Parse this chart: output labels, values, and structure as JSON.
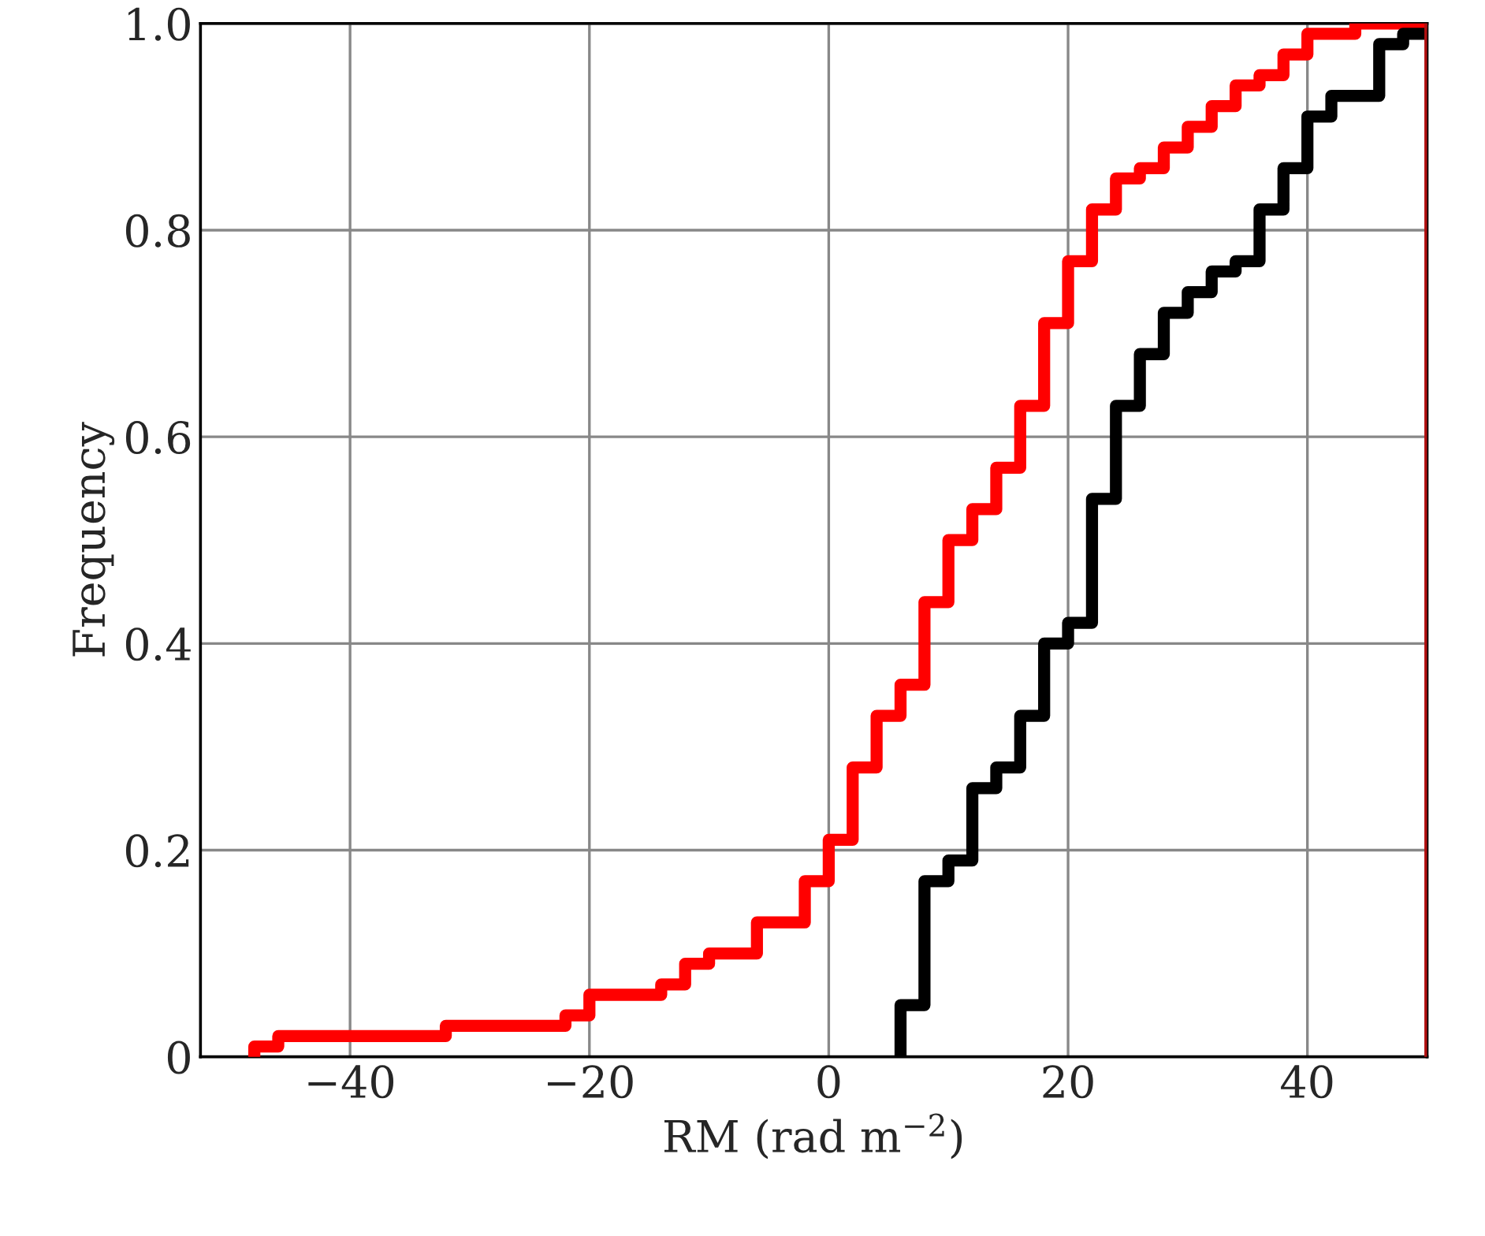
{
  "chart_data": {
    "type": "step",
    "xlabel": "RM (rad m$^{−2}$)",
    "ylabel": "Frequency",
    "xlim": [
      -52.5,
      50
    ],
    "ylim": [
      0,
      1
    ],
    "xticks": [
      {
        "value": -40,
        "label": "−40"
      },
      {
        "value": -20,
        "label": "−20"
      },
      0,
      20,
      40
    ],
    "yticks": [
      0,
      0.2,
      0.4,
      0.6,
      0.8,
      {
        "value": 1,
        "label": "1.0"
      }
    ],
    "grid": true,
    "ref_lines": [
      {
        "axis": "x",
        "value": 50,
        "color": "#b01010"
      }
    ],
    "series": [
      {
        "color": "#ff0000",
        "x": [
          -48,
          -46,
          -44,
          -42,
          -40,
          -38,
          -36,
          -34,
          -32,
          -30,
          -28,
          -26,
          -24,
          -22,
          -20,
          -18,
          -16,
          -14,
          -12,
          -10,
          -8,
          -6,
          -4,
          -2,
          0,
          2,
          4,
          6,
          8,
          10,
          12,
          14,
          16,
          18,
          20,
          22,
          24,
          26,
          28,
          30,
          32,
          34,
          36,
          38,
          40,
          42,
          44,
          46,
          48,
          50
        ],
        "values": [
          0,
          0.01,
          0.02,
          0.02,
          0.02,
          0.02,
          0.02,
          0.02,
          0.02,
          0.03,
          0.03,
          0.03,
          0.03,
          0.03,
          0.04,
          0.06,
          0.06,
          0.06,
          0.07,
          0.09,
          0.1,
          0.1,
          0.13,
          0.13,
          0.17,
          0.21,
          0.28,
          0.33,
          0.36,
          0.44,
          0.5,
          0.53,
          0.57,
          0.63,
          0.71,
          0.77,
          0.82,
          0.85,
          0.86,
          0.88,
          0.9,
          0.92,
          0.94,
          0.95,
          0.97,
          0.99,
          0.99,
          1,
          1,
          1
        ]
      },
      {
        "color": "#000000",
        "x": [
          6,
          8,
          10,
          12,
          14,
          16,
          18,
          20,
          22,
          24,
          26,
          28,
          30,
          32,
          34,
          36,
          38,
          40,
          42,
          44,
          46,
          48,
          50
        ],
        "values": [
          0,
          0.05,
          0.17,
          0.19,
          0.26,
          0.28,
          0.33,
          0.4,
          0.42,
          0.54,
          0.63,
          0.68,
          0.72,
          0.74,
          0.76,
          0.77,
          0.82,
          0.86,
          0.91,
          0.93,
          0.93,
          0.98,
          0.99
        ]
      }
    ]
  }
}
